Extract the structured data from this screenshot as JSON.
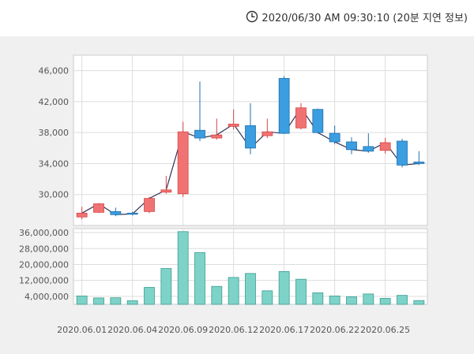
{
  "header": {
    "timestamp": "2020/06/30 AM 09:30:10 (20분 지연 정보)",
    "clock_icon": "clock-icon"
  },
  "colors": {
    "up": "#f07373",
    "up_stroke": "#d64545",
    "down": "#3a9ee0",
    "down_stroke": "#1f6fb0",
    "volume": "#7ed3c8",
    "volume_stroke": "#3c9d92",
    "line": "#333355",
    "grid": "#dddddd",
    "panel": "#ffffff",
    "background": "#f0f0f0"
  },
  "chart_data": [
    {
      "type": "candlestick",
      "title": "",
      "ylim": [
        26000,
        48000
      ],
      "yticks": [
        30000,
        34000,
        38000,
        42000,
        46000
      ],
      "ytick_labels": [
        "30,000",
        "34,000",
        "38,000",
        "42,000",
        "46,000"
      ],
      "grid": true,
      "candles": [
        {
          "open": 27100,
          "close": 27600,
          "high": 28400,
          "low": 26800
        },
        {
          "open": 27700,
          "close": 28800,
          "high": 28900,
          "low": 27600
        },
        {
          "open": 27800,
          "close": 27400,
          "high": 28300,
          "low": 27200
        },
        {
          "open": 27600,
          "close": 27500,
          "high": 27800,
          "low": 27300
        },
        {
          "open": 27800,
          "close": 29500,
          "high": 29700,
          "low": 27600
        },
        {
          "open": 30300,
          "close": 30600,
          "high": 32400,
          "low": 30100
        },
        {
          "open": 30100,
          "close": 38100,
          "high": 39400,
          "low": 29700
        },
        {
          "open": 38300,
          "close": 37300,
          "high": 44600,
          "low": 36900
        },
        {
          "open": 37300,
          "close": 37700,
          "high": 39800,
          "low": 37100
        },
        {
          "open": 38800,
          "close": 39100,
          "high": 41000,
          "low": 38400
        },
        {
          "open": 38900,
          "close": 36000,
          "high": 41800,
          "low": 35200
        },
        {
          "open": 37600,
          "close": 38100,
          "high": 39800,
          "low": 37300
        },
        {
          "open": 45000,
          "close": 37900,
          "high": 45300,
          "low": 37900
        },
        {
          "open": 38600,
          "close": 41200,
          "high": 41800,
          "low": 38400
        },
        {
          "open": 41000,
          "close": 38000,
          "high": 41100,
          "low": 37900
        },
        {
          "open": 37900,
          "close": 36800,
          "high": 38900,
          "low": 36500
        },
        {
          "open": 36800,
          "close": 35800,
          "high": 37400,
          "low": 35200
        },
        {
          "open": 36200,
          "close": 35600,
          "high": 37900,
          "low": 35400
        },
        {
          "open": 35700,
          "close": 36700,
          "high": 37300,
          "low": 35300
        },
        {
          "open": 36900,
          "close": 33800,
          "high": 37200,
          "low": 33500
        },
        {
          "open": 34200,
          "close": 34000,
          "high": 35600,
          "low": 33800
        }
      ],
      "x_tick_labels": [
        {
          "index": 0,
          "label": "2020.06.01"
        },
        {
          "index": 3,
          "label": "2020.06.04"
        },
        {
          "index": 6,
          "label": "2020.06.09"
        },
        {
          "index": 9,
          "label": "2020.06.12"
        },
        {
          "index": 12,
          "label": "2020.06.17"
        },
        {
          "index": 15,
          "label": "2020.06.22"
        },
        {
          "index": 18,
          "label": "2020.06.25"
        }
      ]
    },
    {
      "type": "bar",
      "title": "",
      "ylim": [
        0,
        38000000
      ],
      "yticks": [
        4000000,
        12000000,
        20000000,
        28000000,
        36000000
      ],
      "ytick_labels": [
        "4,000,000",
        "12,000,000",
        "20,000,000",
        "28,000,000",
        "36,000,000"
      ],
      "grid": true,
      "values": [
        4200000,
        3200000,
        3300000,
        1800000,
        8500000,
        18000000,
        36500000,
        26000000,
        9000000,
        13500000,
        15500000,
        6800000,
        16500000,
        12600000,
        5800000,
        4200000,
        3800000,
        5200000,
        3000000,
        4500000,
        1900000
      ]
    }
  ]
}
